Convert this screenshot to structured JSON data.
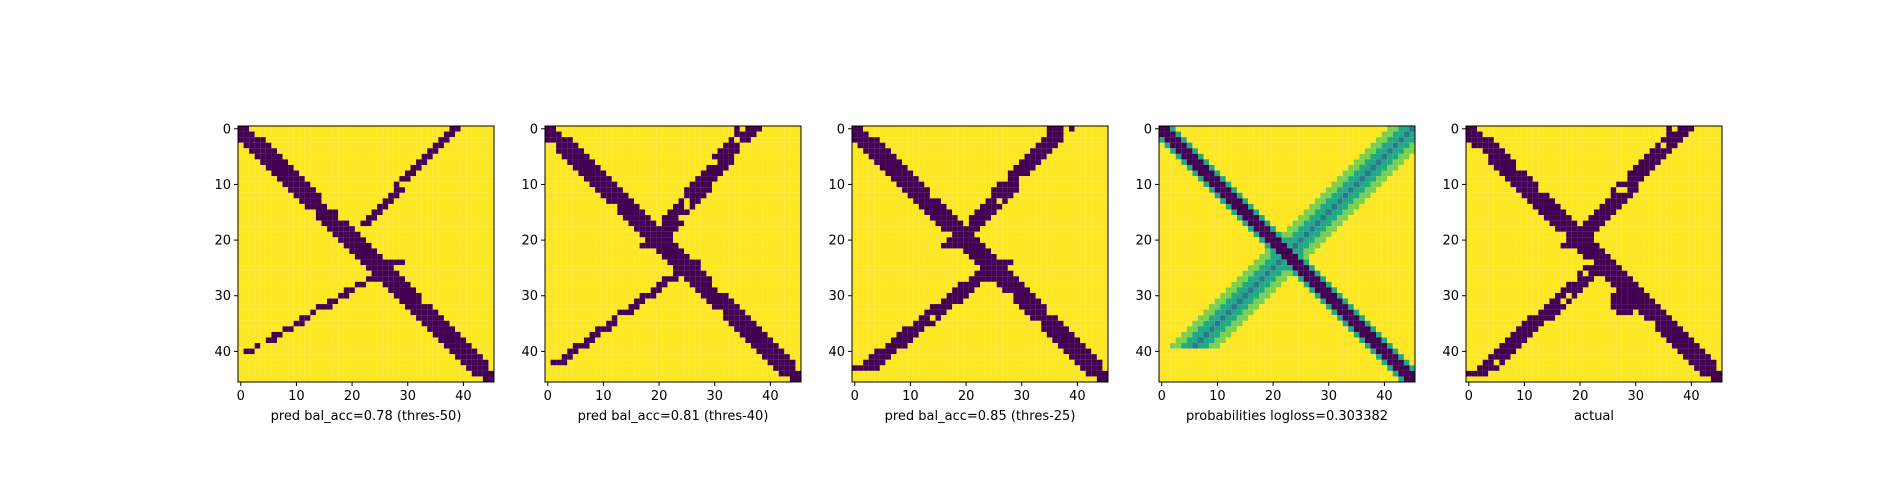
{
  "colors": {
    "background": "#440154",
    "foreground": "#fde725",
    "prob_low": "#7ad151",
    "prob_mid": "#22a884",
    "prob_high": "#2a788e"
  },
  "chart_data": [
    {
      "type": "heatmap",
      "title": "",
      "xlabel": "pred bal_acc=0.78 (thres-50)",
      "ylabel": "",
      "x_ticks": [
        "0",
        "10",
        "20",
        "30",
        "40"
      ],
      "y_ticks": [
        "0",
        "10",
        "20",
        "30",
        "40"
      ],
      "xlim": [
        -0.5,
        45.5
      ],
      "ylim": [
        45.5,
        -0.5
      ],
      "grid": false,
      "variant": "pred",
      "threshold": 50,
      "values_description": "binary mask; purple = 0, yellow = 1",
      "features": {
        "diag_width": 2,
        "anti_start": 38,
        "anti_end": 18,
        "anti_width": 1,
        "anti_lower_start": 28,
        "anti_lower_end": 40,
        "anti_lower_width": 1
      }
    },
    {
      "type": "heatmap",
      "title": "",
      "xlabel": "pred bal_acc=0.81 (thres-40)",
      "ylabel": "",
      "x_ticks": [
        "0",
        "10",
        "20",
        "30",
        "40"
      ],
      "y_ticks": [
        "0",
        "10",
        "20",
        "30",
        "40"
      ],
      "xlim": [
        -0.5,
        45.5
      ],
      "ylim": [
        45.5,
        -0.5
      ],
      "grid": false,
      "variant": "pred",
      "threshold": 40,
      "values_description": "binary mask; purple = 0, yellow = 1",
      "features": {
        "diag_width": 2,
        "anti_start": 36,
        "anti_end": 18,
        "anti_width": 2,
        "anti_lower_start": 26,
        "anti_lower_end": 42,
        "anti_lower_width": 1
      }
    },
    {
      "type": "heatmap",
      "title": "",
      "xlabel": "pred bal_acc=0.85 (thres-25)",
      "ylabel": "",
      "x_ticks": [
        "0",
        "10",
        "20",
        "30",
        "40"
      ],
      "y_ticks": [
        "0",
        "10",
        "20",
        "30",
        "40"
      ],
      "xlim": [
        -0.5,
        45.5
      ],
      "ylim": [
        45.5,
        -0.5
      ],
      "grid": false,
      "variant": "pred",
      "threshold": 25,
      "values_description": "binary mask; purple = 0, yellow = 1",
      "features": {
        "diag_width": 2,
        "anti_start": 37,
        "anti_end": 17,
        "anti_width": 2,
        "anti_lower_start": 26,
        "anti_lower_end": 43,
        "anti_lower_width": 2
      }
    },
    {
      "type": "heatmap",
      "title": "",
      "xlabel": "probabilities logloss=0.303382",
      "ylabel": "",
      "x_ticks": [
        "0",
        "10",
        "20",
        "30",
        "40"
      ],
      "y_ticks": [
        "0",
        "10",
        "20",
        "30",
        "40"
      ],
      "xlim": [
        -0.5,
        45.5
      ],
      "ylim": [
        45.5,
        -0.5
      ],
      "grid": false,
      "variant": "prob",
      "logloss": 0.303382,
      "values_description": "probability map; purple = 0, yellow = 1"
    },
    {
      "type": "heatmap",
      "title": "",
      "xlabel": "actual",
      "ylabel": "",
      "x_ticks": [
        "0",
        "10",
        "20",
        "30",
        "40"
      ],
      "y_ticks": [
        "0",
        "10",
        "20",
        "30",
        "40"
      ],
      "xlim": [
        -0.5,
        45.5
      ],
      "ylim": [
        45.5,
        -0.5
      ],
      "grid": false,
      "variant": "actual",
      "values_description": "binary mask; purple = 0, yellow = 1",
      "features": {
        "diag_width": 2,
        "anti_start": 38,
        "anti_end": 18,
        "anti_width": 2,
        "anti_lower_start": 24,
        "anti_lower_end": 44,
        "anti_lower_width": 2,
        "blob_center": [
          31,
          28
        ]
      }
    }
  ]
}
